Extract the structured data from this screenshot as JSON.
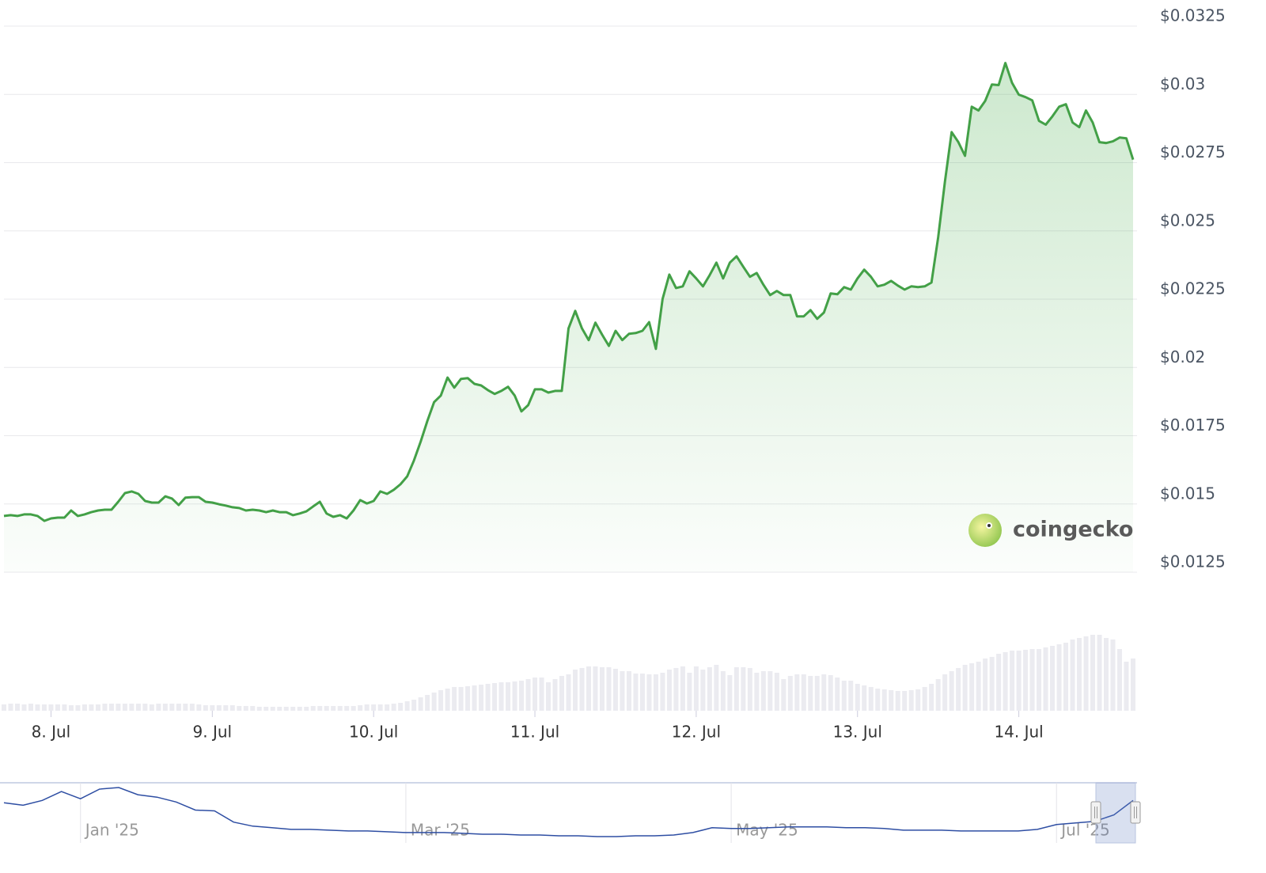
{
  "chart_data": {
    "type": "line",
    "color": "#43a047",
    "grid": true,
    "ylim": [
      0.0125,
      0.0325
    ],
    "yticks": [
      {
        "value": 0.0125,
        "label": "$0.0125"
      },
      {
        "value": 0.015,
        "label": "$0.015"
      },
      {
        "value": 0.0175,
        "label": "$0.0175"
      },
      {
        "value": 0.02,
        "label": "$0.02"
      },
      {
        "value": 0.0225,
        "label": "$0.0225"
      },
      {
        "value": 0.025,
        "label": "$0.025"
      },
      {
        "value": 0.0275,
        "label": "$0.0275"
      },
      {
        "value": 0.03,
        "label": "$0.03"
      },
      {
        "value": 0.0325,
        "label": "$0.0325"
      }
    ],
    "categories": [
      null,
      null,
      null,
      null,
      null,
      null,
      null,
      "8. Jul",
      null,
      null,
      null,
      null,
      null,
      null,
      null,
      null,
      null,
      null,
      null,
      null,
      null,
      null,
      null,
      null,
      null,
      null,
      null,
      null,
      null,
      null,
      null,
      "9. Jul",
      null,
      null,
      null,
      null,
      null,
      null,
      null,
      null,
      null,
      null,
      null,
      null,
      null,
      null,
      null,
      null,
      null,
      null,
      null,
      null,
      null,
      null,
      null,
      "10. Jul",
      null,
      null,
      null,
      null,
      null,
      null,
      null,
      null,
      null,
      null,
      null,
      null,
      null,
      null,
      null,
      null,
      null,
      null,
      null,
      null,
      null,
      null,
      null,
      "11. Jul",
      null,
      null,
      null,
      null,
      null,
      null,
      null,
      null,
      null,
      null,
      null,
      null,
      null,
      null,
      null,
      null,
      null,
      null,
      null,
      null,
      null,
      null,
      null,
      "12. Jul",
      null,
      null,
      null,
      null,
      null,
      null,
      null,
      null,
      null,
      null,
      null,
      null,
      null,
      null,
      null,
      null,
      null,
      null,
      null,
      null,
      null,
      null,
      null,
      "13. Jul",
      null,
      null,
      null,
      null,
      null,
      null,
      null,
      null,
      null,
      null,
      null,
      null,
      null,
      null,
      null,
      null,
      null,
      null,
      null,
      null,
      null,
      null,
      null,
      "14. Jul",
      null,
      null,
      null,
      null,
      null,
      null,
      null,
      null,
      null,
      null,
      null,
      null,
      null,
      null,
      null,
      null,
      null
    ],
    "values": [
      0.01456,
      0.01459,
      0.01456,
      0.01462,
      0.01462,
      0.01456,
      0.01438,
      0.01447,
      0.0145,
      0.0145,
      0.01476,
      0.01456,
      0.01462,
      0.0147,
      0.01476,
      0.01479,
      0.01479,
      0.01508,
      0.0154,
      0.01546,
      0.01537,
      0.01511,
      0.01505,
      0.01505,
      0.01528,
      0.0152,
      0.01496,
      0.01523,
      0.01525,
      0.01525,
      0.01508,
      0.01505,
      0.01499,
      0.01494,
      0.01488,
      0.01485,
      0.01476,
      0.01479,
      0.01476,
      0.0147,
      0.01476,
      0.0147,
      0.0147,
      0.01459,
      0.01465,
      0.01473,
      0.01491,
      0.01508,
      0.01465,
      0.01453,
      0.01459,
      0.01447,
      0.01476,
      0.01514,
      0.01502,
      0.01511,
      0.01546,
      0.01537,
      0.01552,
      0.01572,
      0.01601,
      0.01659,
      0.01728,
      0.01804,
      0.01873,
      0.01897,
      0.01963,
      0.01926,
      0.01958,
      0.01961,
      0.0194,
      0.01934,
      0.01917,
      0.01903,
      0.01914,
      0.01929,
      0.01897,
      0.01839,
      0.01862,
      0.0192,
      0.0192,
      0.01908,
      0.01914,
      0.01914,
      0.02143,
      0.02207,
      0.02143,
      0.021,
      0.02164,
      0.0212,
      0.02079,
      0.02134,
      0.021,
      0.02123,
      0.02126,
      0.02134,
      0.02166,
      0.02068,
      0.02251,
      0.0234,
      0.02291,
      0.02297,
      0.02352,
      0.02326,
      0.02297,
      0.02338,
      0.02384,
      0.02326,
      0.02384,
      0.02407,
      0.02369,
      0.02332,
      0.02346,
      0.02303,
      0.02265,
      0.0228,
      0.02265,
      0.02265,
      0.02187,
      0.02187,
      0.0221,
      0.02178,
      0.02201,
      0.02271,
      0.02268,
      0.02294,
      0.02285,
      0.02326,
      0.02358,
      0.02332,
      0.02297,
      0.02303,
      0.02317,
      0.023,
      0.02285,
      0.02297,
      0.02294,
      0.02297,
      0.02311,
      0.02477,
      0.0268,
      0.02862,
      0.02825,
      0.02775,
      0.02955,
      0.02941,
      0.02976,
      0.03036,
      0.03034,
      0.03115,
      0.03042,
      0.02999,
      0.0299,
      0.02978,
      0.02903,
      0.02889,
      0.0292,
      0.02955,
      0.02964,
      0.02897,
      0.0288,
      0.02941,
      0.02897,
      0.02825,
      0.02822,
      0.02828,
      0.02842,
      0.02839,
      0.02761
    ],
    "volume_color": "#ebebf0",
    "volume": [
      8,
      9,
      9,
      8,
      9,
      8,
      8,
      8,
      8,
      8,
      7,
      7,
      8,
      8,
      8,
      9,
      9,
      9,
      9,
      9,
      9,
      9,
      8,
      9,
      9,
      9,
      9,
      9,
      9,
      8,
      7,
      7,
      7,
      7,
      7,
      6,
      6,
      6,
      5,
      5,
      5,
      5,
      5,
      5,
      5,
      5,
      6,
      6,
      6,
      6,
      6,
      6,
      6,
      7,
      8,
      8,
      8,
      8,
      9,
      10,
      12,
      14,
      17,
      20,
      23,
      26,
      28,
      30,
      30,
      31,
      32,
      33,
      34,
      35,
      36,
      36,
      37,
      38,
      40,
      42,
      42,
      36,
      40,
      44,
      46,
      52,
      54,
      56,
      56,
      55,
      55,
      53,
      50,
      50,
      47,
      47,
      46,
      46,
      48,
      52,
      54,
      56,
      48,
      56,
      52,
      55,
      58,
      50,
      45,
      55,
      55,
      54,
      48,
      50,
      50,
      48,
      40,
      44,
      46,
      46,
      44,
      44,
      46,
      45,
      42,
      38,
      38,
      34,
      32,
      30,
      28,
      27,
      26,
      25,
      25,
      26,
      27,
      30,
      34,
      40,
      46,
      50,
      54,
      58,
      60,
      62,
      66,
      68,
      72,
      74,
      76,
      76,
      77,
      78,
      78,
      80,
      82,
      84,
      86,
      90,
      92,
      94,
      96,
      96,
      92,
      90,
      78,
      62,
      66
    ],
    "watermark": "coingecko",
    "navigator": {
      "color": "#2e4ea3",
      "categories": [
        null,
        null,
        null,
        null,
        "Jan '25",
        null,
        null,
        null,
        null,
        null,
        null,
        null,
        null,
        null,
        null,
        null,
        null,
        null,
        null,
        null,
        null,
        "Mar '25",
        null,
        null,
        null,
        null,
        null,
        null,
        null,
        null,
        null,
        null,
        null,
        null,
        null,
        null,
        null,
        null,
        "May '25",
        null,
        null,
        null,
        null,
        null,
        null,
        null,
        null,
        null,
        null,
        null,
        null,
        null,
        null,
        null,
        null,
        "Jul '25",
        null,
        null,
        null,
        null
      ],
      "values": [
        0.0264,
        0.0252,
        0.0276,
        0.032,
        0.0284,
        0.0332,
        0.034,
        0.0304,
        0.0292,
        0.0268,
        0.0228,
        0.0224,
        0.0168,
        0.0148,
        0.014,
        0.0132,
        0.0132,
        0.0128,
        0.0124,
        0.0124,
        0.012,
        0.0116,
        0.0116,
        0.0116,
        0.0112,
        0.0108,
        0.0108,
        0.0104,
        0.0104,
        0.01,
        0.01,
        0.0096,
        0.0096,
        0.01,
        0.01,
        0.0104,
        0.0116,
        0.014,
        0.0136,
        0.0136,
        0.014,
        0.0144,
        0.0144,
        0.0144,
        0.014,
        0.014,
        0.0136,
        0.0128,
        0.0128,
        0.0128,
        0.0124,
        0.0124,
        0.0124,
        0.0124,
        0.0132,
        0.0156,
        0.0164,
        0.0172,
        0.0204,
        0.0276
      ]
    }
  }
}
